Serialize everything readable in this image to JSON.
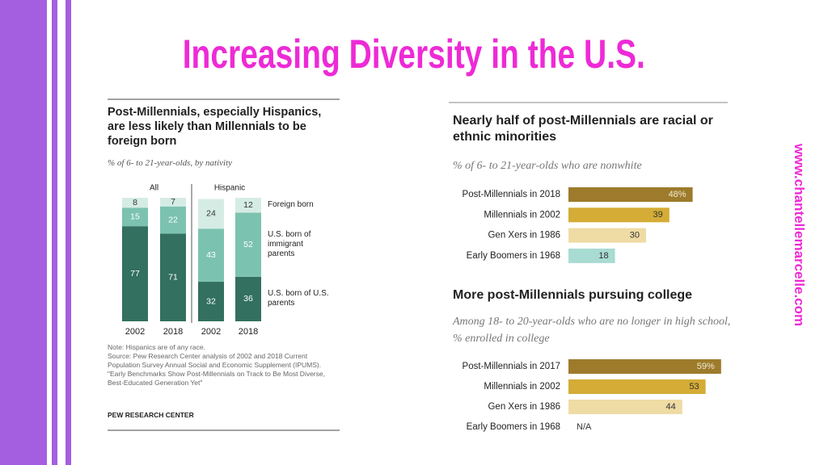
{
  "slide": {
    "title": "Increasing Diversity in the U.S.",
    "website": "www.chantellemarcelle.com"
  },
  "chart_data": [
    {
      "type": "stacked_bar",
      "title": "Post-Millennials, especially Hispanics, are less likely than Millennials to be foreign born",
      "subtitle": "% of 6- to 21-year-olds, by nativity",
      "category_groups": [
        "All",
        "Hispanic"
      ],
      "categories": [
        "2002",
        "2018",
        "2002",
        "2018"
      ],
      "series": [
        {
          "name": "U.S. born of U.S. parents",
          "color": "#33705f",
          "values": [
            77,
            71,
            32,
            36
          ]
        },
        {
          "name": "U.S. born of immigrant parents",
          "color": "#7cc2b0",
          "values": [
            15,
            22,
            43,
            52
          ]
        },
        {
          "name": "Foreign born",
          "color": "#d5ece5",
          "values": [
            8,
            7,
            24,
            12
          ]
        }
      ],
      "notes": [
        "Note: Hispanics are of any race.",
        "Source: Pew Research Center analysis of 2002 and 2018 Current Population Survey Annual Social and Economic Supplement (IPUMS).",
        "\"Early Benchmarks Show Post-Millennials on Track to Be Most Diverse, Best-Educated Generation Yet\""
      ],
      "credit": "PEW RESEARCH CENTER"
    },
    {
      "type": "hbar",
      "title": "Nearly half of post-Millennials are racial or ethnic minorities",
      "subtitle": "% of 6- to 21-year-olds who are nonwhite",
      "categories": [
        "Post-Millennials in 2018",
        "Millennials in 2002",
        "Gen Xers in 1986",
        "Early Boomers in 1968"
      ],
      "values": [
        48,
        39,
        30,
        18
      ],
      "value_labels": [
        "48%",
        "39",
        "30",
        "18"
      ],
      "colors": [
        "#9d7b2b",
        "#d4ac36",
        "#efdba4",
        "#a8dbd1"
      ]
    },
    {
      "type": "hbar",
      "title": "More post-Millennials pursuing college",
      "subtitle": "Among 18- to 20-year-olds who are no longer in high school, % enrolled in college",
      "categories": [
        "Post-Millennials in 2017",
        "Millennials in 2002",
        "Gen Xers in 1986",
        "Early Boomers in 1968"
      ],
      "values": [
        59,
        53,
        44,
        null
      ],
      "value_labels": [
        "59%",
        "53",
        "44",
        "N/A"
      ],
      "colors": [
        "#9d7b2b",
        "#d4ac36",
        "#efdba4",
        "#a8dbd1"
      ]
    }
  ]
}
